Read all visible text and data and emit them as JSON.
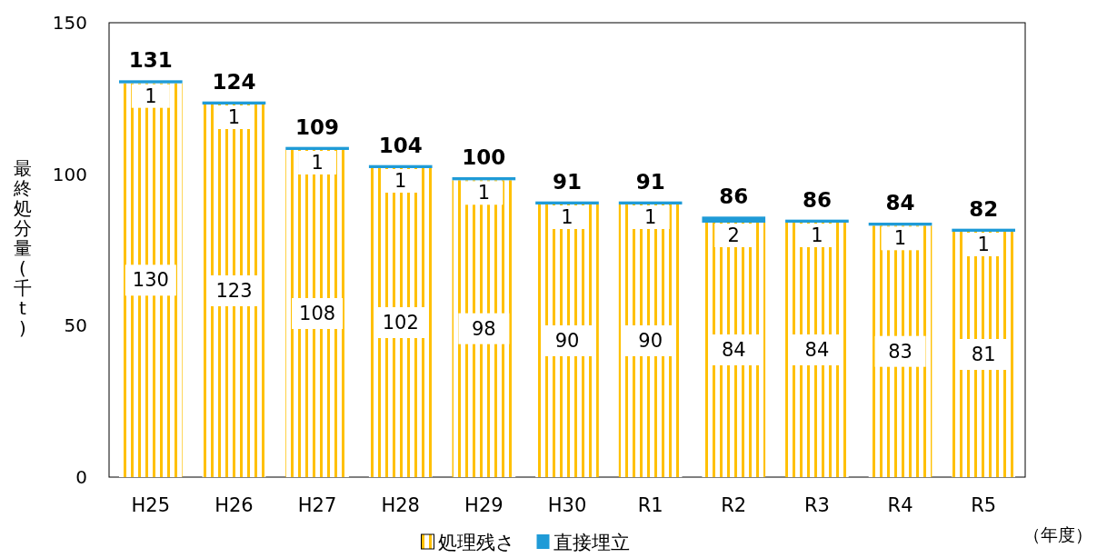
{
  "chart_data": {
    "type": "bar",
    "stacked": true,
    "ylabel": "最終処分量(千t)",
    "categories": [
      "H25",
      "H26",
      "H27",
      "H28",
      "H29",
      "H30",
      "R1",
      "R2",
      "R3",
      "R4",
      "R5"
    ],
    "series": [
      {
        "name": "処理残さ",
        "color": "#ffc000",
        "values": [
          130,
          123,
          108,
          102,
          98,
          90,
          90,
          84,
          84,
          83,
          81
        ]
      },
      {
        "name": "直接埋立",
        "color": "#1f9bd7",
        "values": [
          1,
          1,
          1,
          1,
          1,
          1,
          1,
          2,
          1,
          1,
          1
        ]
      }
    ],
    "data_labels": true,
    "totals": [
      "131",
      "124",
      "109",
      "104",
      "100",
      "91",
      "91",
      "86",
      "86",
      "84",
      "82"
    ],
    "ylim": [
      0,
      150
    ],
    "yticks": [
      0,
      50,
      100,
      150
    ],
    "grid": false,
    "legend": "bottom",
    "annotations": [
      "（年度）"
    ]
  }
}
